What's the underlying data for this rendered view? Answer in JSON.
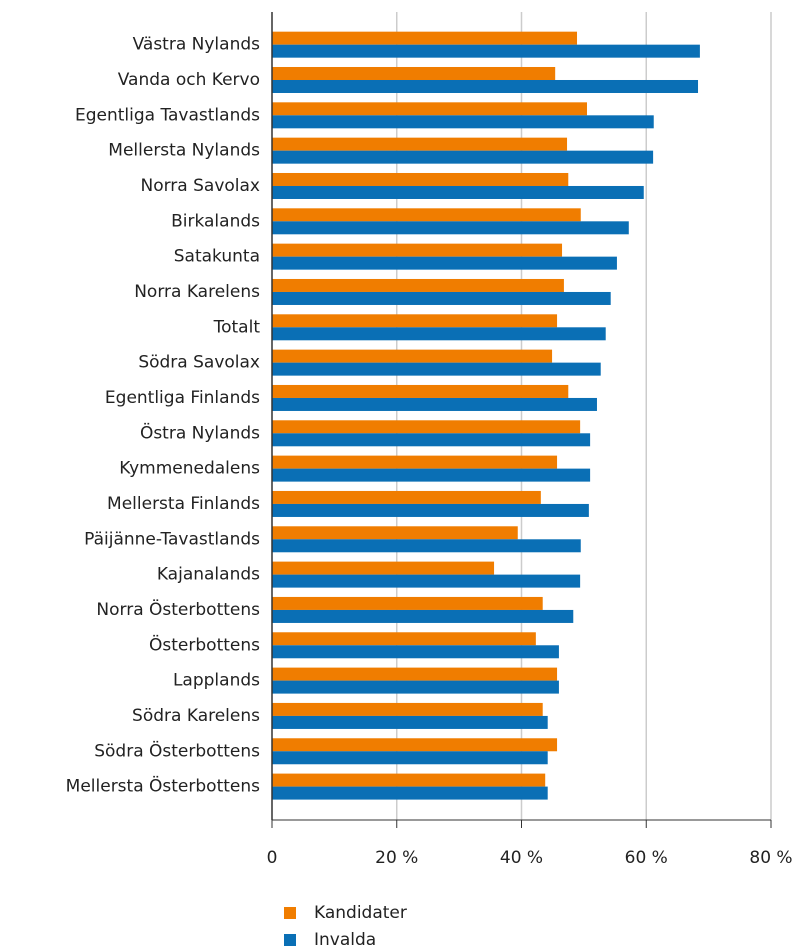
{
  "chart_data": {
    "type": "hbar",
    "categories": [
      "Västra Nylands",
      "Vanda och Kervo",
      "Egentliga Tavastlands",
      "Mellersta Nylands",
      "Norra Savolax",
      "Birkalands",
      "Satakunta",
      "Norra Karelens",
      "Totalt",
      "Södra Savolax",
      "Egentliga Finlands",
      "Östra Nylands",
      "Kymmenedalens",
      "Mellersta Finlands",
      "Päijänne-Tavastlands",
      "Kajanalands",
      "Norra Österbottens",
      "Österbottens",
      "Lapplands",
      "Södra Karelens",
      "Södra Österbottens",
      "Mellersta Österbottens"
    ],
    "series": [
      {
        "name": "Kandidater",
        "color": "#f07d00",
        "values": [
          48.9,
          45.4,
          50.5,
          47.3,
          47.5,
          49.5,
          46.5,
          46.8,
          45.7,
          44.9,
          47.5,
          49.4,
          45.7,
          43.1,
          39.4,
          35.6,
          43.4,
          42.3,
          45.7,
          43.4,
          45.7,
          43.8
        ]
      },
      {
        "name": "Invalda",
        "color": "#0a6fb5",
        "values": [
          68.6,
          68.3,
          61.2,
          61.1,
          59.6,
          57.2,
          55.3,
          54.3,
          53.5,
          52.7,
          52.1,
          51.0,
          51.0,
          50.8,
          49.5,
          49.4,
          48.3,
          46.0,
          46.0,
          44.2,
          44.2,
          44.2
        ]
      }
    ],
    "xlim": [
      0,
      80
    ],
    "xticks": [
      0,
      {
        "value": 20,
        "label": "20 %"
      },
      {
        "value": 40,
        "label": "40 %"
      },
      {
        "value": 60,
        "label": "60 %"
      },
      {
        "value": 80,
        "label": "80 %"
      }
    ],
    "grid": true
  }
}
